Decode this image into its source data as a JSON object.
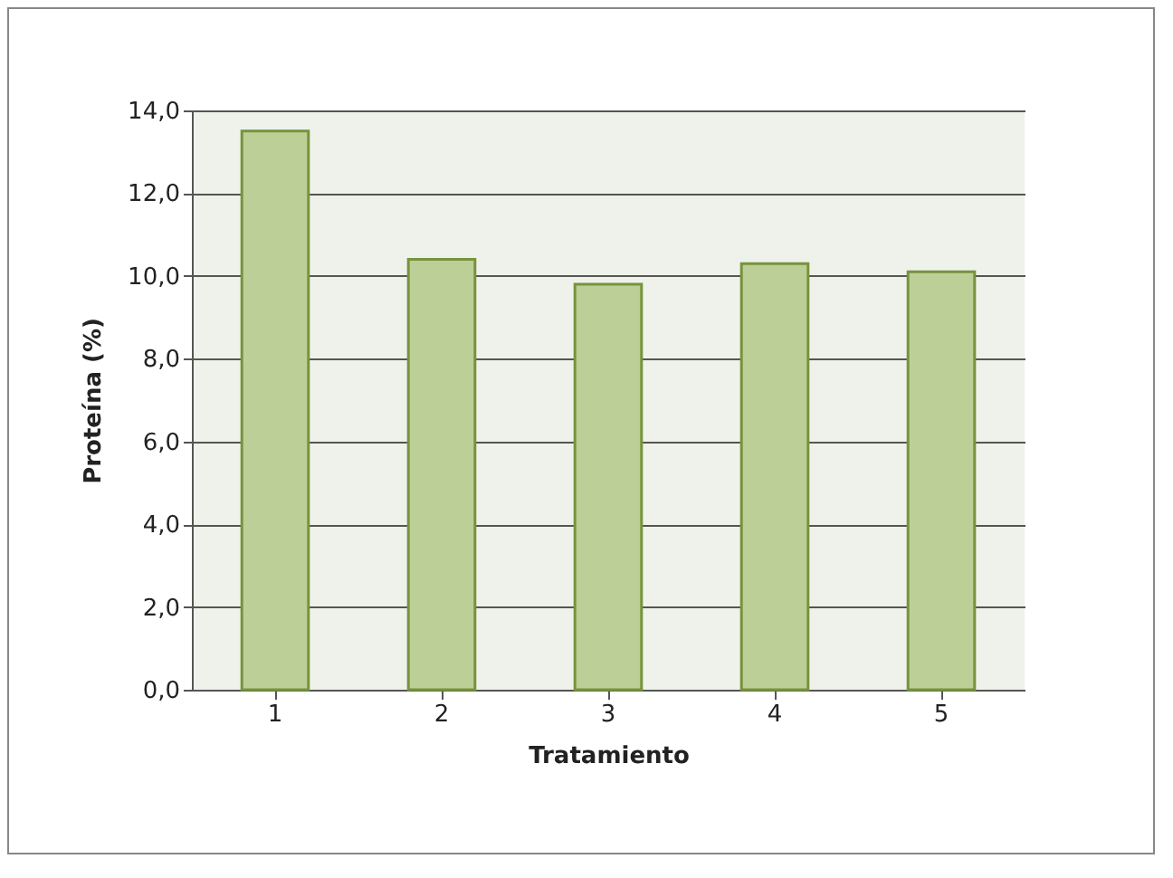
{
  "chart_data": {
    "type": "bar",
    "xlabel": "Tratamiento",
    "ylabel": "Proteína (%)",
    "categories": [
      "1",
      "2",
      "3",
      "4",
      "5"
    ],
    "values": [
      13.5,
      10.4,
      9.8,
      10.3,
      10.1
    ],
    "color": "#bccf96",
    "ylim": [
      0,
      14
    ],
    "yticks": [
      {
        "value": 0,
        "label": "0,0"
      },
      {
        "value": 2,
        "label": "2,0"
      },
      {
        "value": 4,
        "label": "4,0"
      },
      {
        "value": 6,
        "label": "6,0"
      },
      {
        "value": 8,
        "label": "8,0"
      },
      {
        "value": 10,
        "label": "10,0"
      },
      {
        "value": 12,
        "label": "12,0"
      },
      {
        "value": 14,
        "label": "14,0"
      }
    ],
    "grid": "y"
  }
}
